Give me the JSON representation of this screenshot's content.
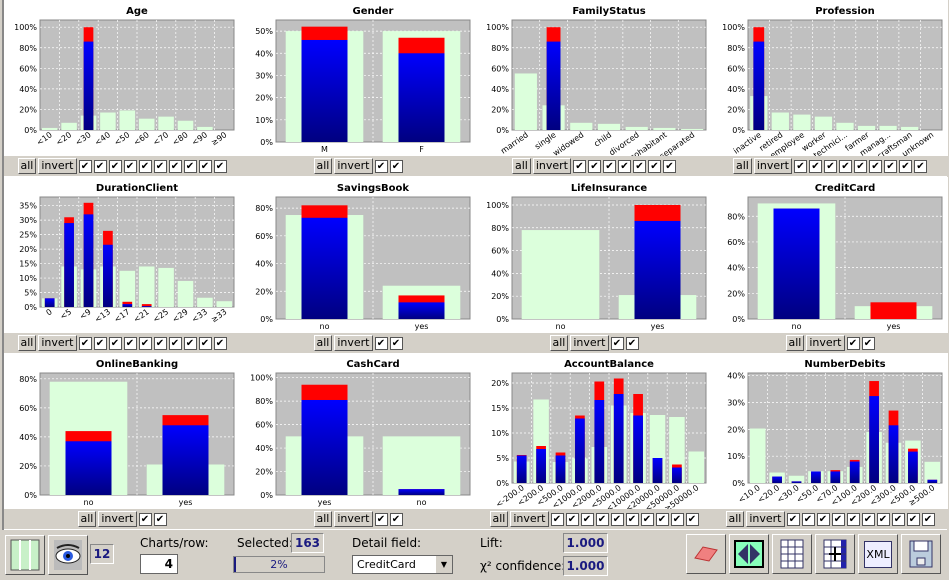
{
  "colors": {
    "plot_bg": "#c0c0c0",
    "overall": "#dcffdc",
    "selected_top": "#0000ff",
    "selected_bottom": "#000080",
    "extra": "#ff0000"
  },
  "checkbar": {
    "all_label": "all",
    "invert_label": "invert",
    "check": "✔"
  },
  "charts": [
    {
      "title": "Age",
      "ylim": [
        0,
        107
      ],
      "ticks": [
        0,
        20,
        40,
        60,
        80,
        100
      ],
      "rotate": true,
      "categories": [
        "<10",
        "<20",
        "<30",
        "<40",
        "<50",
        "<60",
        "<70",
        "<80",
        "<90",
        "≥90"
      ],
      "overall": [
        2,
        7,
        14,
        17,
        19,
        11,
        13,
        9,
        3,
        0
      ],
      "selected": [
        0,
        0,
        86,
        0,
        0,
        0,
        0,
        0,
        0,
        0
      ],
      "total": [
        0,
        0,
        100,
        0,
        0,
        0,
        0,
        0,
        0,
        0
      ]
    },
    {
      "title": "Gender",
      "ylim": [
        0,
        55
      ],
      "ticks": [
        0,
        10,
        20,
        30,
        40,
        50
      ],
      "rotate": false,
      "categories": [
        "M",
        "F"
      ],
      "overall": [
        50,
        50
      ],
      "selected": [
        46,
        40
      ],
      "total": [
        52,
        47
      ]
    },
    {
      "title": "FamilyStatus",
      "ylim": [
        0,
        107
      ],
      "ticks": [
        0,
        20,
        40,
        60,
        80,
        100
      ],
      "rotate": true,
      "categories": [
        "married",
        "single",
        "widowed",
        "child",
        "divorced",
        "cohabitant",
        "separated"
      ],
      "overall": [
        55,
        24,
        7,
        6,
        3,
        2,
        1
      ],
      "selected": [
        0,
        86,
        0,
        0,
        0,
        0,
        0
      ],
      "total": [
        0,
        100,
        0,
        0,
        0,
        0,
        0
      ]
    },
    {
      "title": "Profession",
      "ylim": [
        0,
        107
      ],
      "ticks": [
        0,
        20,
        40,
        60,
        80,
        100
      ],
      "rotate": true,
      "categories": [
        "inactive",
        "retired",
        "employee",
        "worker",
        "technici...",
        "farmer",
        "manag...",
        "craftsman",
        "unknown"
      ],
      "overall": [
        33,
        17,
        15,
        13,
        7,
        4,
        4,
        3,
        0
      ],
      "selected": [
        86,
        0,
        0,
        0,
        0,
        0,
        0,
        0,
        0
      ],
      "total": [
        100,
        0,
        0,
        0,
        0,
        0,
        0,
        0,
        0
      ]
    },
    {
      "title": "DurationClient",
      "ylim": [
        0,
        38
      ],
      "ticks": [
        0,
        5,
        10,
        15,
        20,
        25,
        30,
        35
      ],
      "rotate": true,
      "categories": [
        "0",
        "<5",
        "<9",
        "<13",
        "<17",
        "<21",
        "<25",
        "<29",
        "<33",
        "≥33"
      ],
      "overall": [
        3,
        14,
        13,
        14,
        12.5,
        14,
        13.5,
        9,
        3.2,
        2
      ],
      "selected": [
        3,
        29,
        32,
        21.5,
        1,
        0.3,
        0,
        0,
        0,
        0
      ],
      "total": [
        3,
        31,
        36,
        26.3,
        1.8,
        1,
        0,
        0,
        0,
        0
      ]
    },
    {
      "title": "SavingsBook",
      "ylim": [
        0,
        88
      ],
      "ticks": [
        0,
        20,
        40,
        60,
        80
      ],
      "rotate": false,
      "categories": [
        "no",
        "yes"
      ],
      "overall": [
        75,
        24
      ],
      "selected": [
        73,
        12
      ],
      "total": [
        82,
        17
      ]
    },
    {
      "title": "LifeInsurance",
      "ylim": [
        0,
        107
      ],
      "ticks": [
        0,
        20,
        40,
        60,
        80,
        100
      ],
      "rotate": false,
      "categories": [
        "no",
        "yes"
      ],
      "overall": [
        78,
        21
      ],
      "selected": [
        0,
        86
      ],
      "total": [
        0,
        100
      ]
    },
    {
      "title": "CreditCard",
      "ylim": [
        0,
        95
      ],
      "ticks": [
        0,
        20,
        40,
        60,
        80
      ],
      "rotate": false,
      "categories": [
        "no",
        "yes"
      ],
      "overall": [
        90,
        10
      ],
      "selected": [
        86,
        0
      ],
      "total": [
        86,
        13
      ]
    },
    {
      "title": "OnlineBanking",
      "ylim": [
        0,
        84
      ],
      "ticks": [
        0,
        20,
        40,
        60,
        80
      ],
      "rotate": false,
      "categories": [
        "no",
        "yes"
      ],
      "overall": [
        78,
        21
      ],
      "selected": [
        37,
        48
      ],
      "total": [
        44,
        55
      ]
    },
    {
      "title": "CashCard",
      "ylim": [
        0,
        104
      ],
      "ticks": [
        0,
        20,
        40,
        60,
        80,
        100
      ],
      "rotate": false,
      "categories": [
        "yes",
        "no"
      ],
      "overall": [
        50,
        50
      ],
      "selected": [
        81,
        5
      ],
      "total": [
        94,
        5
      ]
    },
    {
      "title": "AccountBalance",
      "ylim": [
        0,
        22
      ],
      "ticks": [
        0,
        5,
        10,
        15,
        20
      ],
      "rotate": true,
      "categories": [
        "<-200.0",
        "<200.0",
        "<500.0",
        "<1000.0",
        "<2000.0",
        "<5000.0",
        "<10000.0",
        "<20000.0",
        "<50000.0",
        "≥50000.0"
      ],
      "overall": [
        4.3,
        16.7,
        4.2,
        4.9,
        7.2,
        15.5,
        14,
        13.6,
        13.2,
        6.3
      ],
      "selected": [
        5.5,
        6.8,
        5.5,
        12.9,
        16.6,
        17.8,
        13.5,
        5,
        3.1,
        0
      ],
      "total": [
        5.6,
        7.4,
        6.1,
        13.5,
        20.3,
        20.9,
        17.8,
        5,
        3.7,
        0
      ]
    },
    {
      "title": "NumberDebits",
      "ylim": [
        0,
        41
      ],
      "ticks": [
        0,
        10,
        20,
        30,
        40
      ],
      "rotate": true,
      "categories": [
        "<10.0",
        "<20.0",
        "<30.0",
        "<50.0",
        "<70.0",
        "<100.0",
        "<200.0",
        "<300.0",
        "<500.0",
        "≥500.0"
      ],
      "overall": [
        20.3,
        3.9,
        2.7,
        4.4,
        4.4,
        6,
        19,
        15,
        15.8,
        7.9
      ],
      "selected": [
        0,
        2.4,
        0.6,
        4.3,
        4.3,
        8,
        32.4,
        21.5,
        11.7,
        1.2
      ],
      "total": [
        0,
        2.4,
        0.6,
        4.3,
        4.8,
        8.6,
        38,
        27,
        12.8,
        1.2
      ]
    }
  ],
  "footer": {
    "chart_count": "12",
    "charts_per_row_label": "Charts/row:",
    "charts_per_row": "4",
    "selected_label": "Selected:",
    "selected": "163",
    "progress_text": "2%",
    "progress": 0.02,
    "detail_label": "Detail field:",
    "detail_value": "CreditCard",
    "lift_label": "Lift:",
    "lift": "1.000",
    "chi_label": "χ² confidence:",
    "chi": "1.000",
    "xml_label": "XML"
  }
}
